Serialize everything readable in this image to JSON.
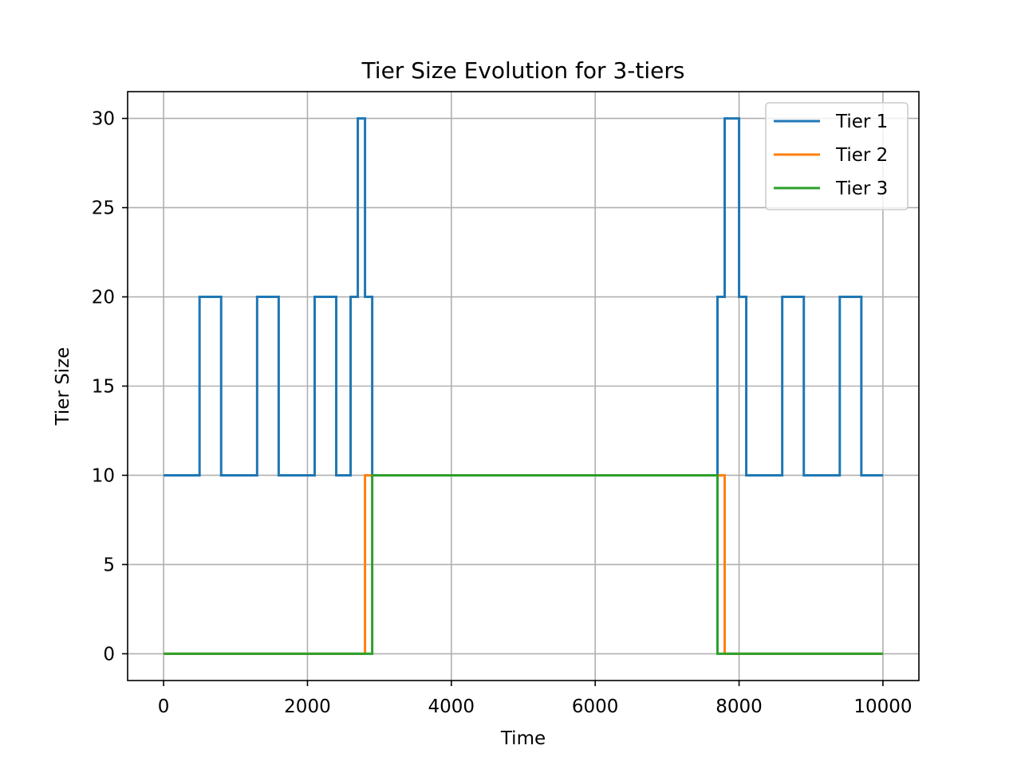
{
  "chart_data": {
    "type": "line",
    "step": "post",
    "title": "Tier Size Evolution for 3-tiers",
    "xlabel": "Time",
    "ylabel": "Tier Size",
    "xlim": [
      -500,
      10500
    ],
    "ylim": [
      -1.5,
      31.5
    ],
    "xticks": [
      0,
      2000,
      4000,
      6000,
      8000,
      10000
    ],
    "yticks": [
      0,
      5,
      10,
      15,
      20,
      25,
      30
    ],
    "grid": true,
    "legend_position": "upper right",
    "series": [
      {
        "name": "Tier 1",
        "color": "#1f77b4",
        "x": [
          0,
          500,
          800,
          1300,
          1600,
          2100,
          2400,
          2600,
          2700,
          2800,
          2900,
          7700,
          7800,
          8000,
          8100,
          8600,
          8900,
          9400,
          9700,
          10000
        ],
        "y": [
          10,
          20,
          10,
          20,
          10,
          20,
          10,
          20,
          30,
          20,
          10,
          20,
          30,
          20,
          10,
          20,
          10,
          20,
          10,
          10
        ]
      },
      {
        "name": "Tier 2",
        "color": "#ff7f0e",
        "x": [
          0,
          2800,
          7800,
          10000
        ],
        "y": [
          0,
          10,
          0,
          0
        ]
      },
      {
        "name": "Tier 3",
        "color": "#2ca02c",
        "x": [
          0,
          2900,
          7700,
          10000
        ],
        "y": [
          0,
          10,
          0,
          0
        ]
      }
    ]
  }
}
